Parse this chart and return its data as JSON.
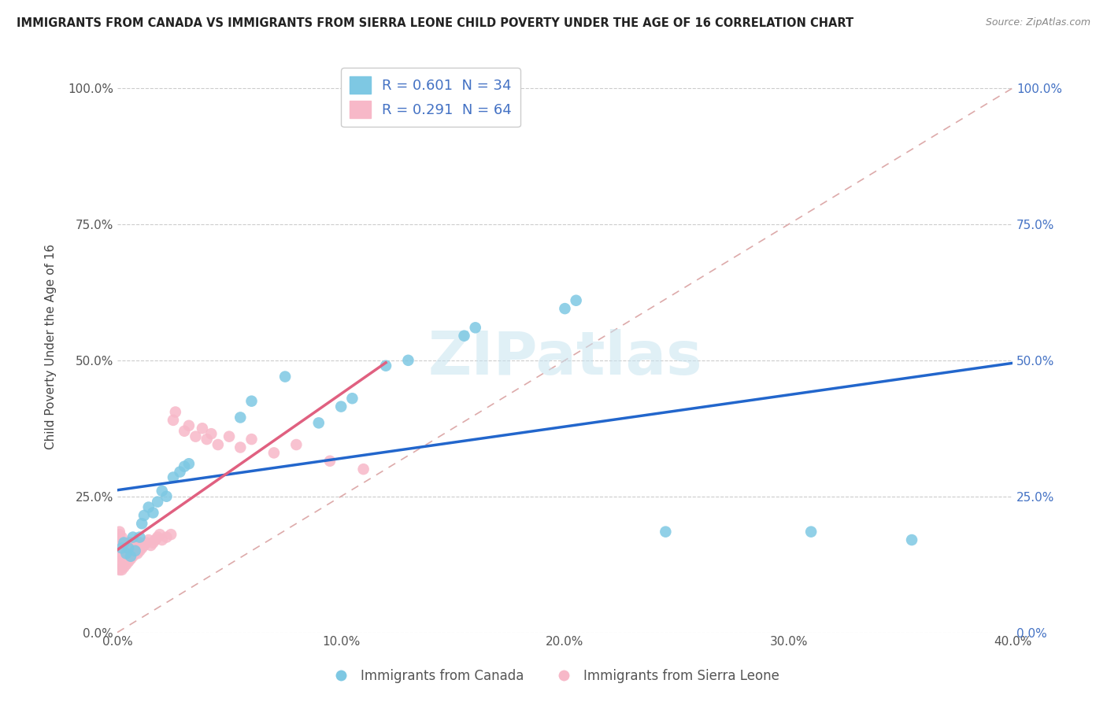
{
  "title": "IMMIGRANTS FROM CANADA VS IMMIGRANTS FROM SIERRA LEONE CHILD POVERTY UNDER THE AGE OF 16 CORRELATION CHART",
  "source": "Source: ZipAtlas.com",
  "ylabel": "Child Poverty Under the Age of 16",
  "watermark": "ZIPatlas",
  "canada_R": 0.601,
  "canada_N": 34,
  "sierraleone_R": 0.291,
  "sierraleone_N": 64,
  "canada_color": "#7ec8e3",
  "sierraleone_color": "#f7b8c8",
  "canada_line_color": "#2266cc",
  "sierraleone_line_color": "#e06080",
  "background_color": "#ffffff",
  "grid_color": "#cccccc",
  "xlim": [
    0.0,
    0.4
  ],
  "ylim": [
    0.0,
    1.05
  ],
  "xticks": [
    0.0,
    0.1,
    0.2,
    0.3,
    0.4
  ],
  "yticks": [
    0.0,
    0.25,
    0.5,
    0.75,
    1.0
  ],
  "canada_x": [
    0.002,
    0.003,
    0.004,
    0.005,
    0.006,
    0.007,
    0.008,
    0.01,
    0.011,
    0.012,
    0.014,
    0.016,
    0.018,
    0.02,
    0.022,
    0.025,
    0.028,
    0.03,
    0.032,
    0.055,
    0.06,
    0.075,
    0.09,
    0.1,
    0.105,
    0.12,
    0.13,
    0.155,
    0.16,
    0.2,
    0.205,
    0.245,
    0.31,
    0.355
  ],
  "canada_y": [
    0.155,
    0.165,
    0.145,
    0.155,
    0.14,
    0.175,
    0.15,
    0.175,
    0.2,
    0.215,
    0.23,
    0.22,
    0.24,
    0.26,
    0.25,
    0.285,
    0.295,
    0.305,
    0.31,
    0.395,
    0.425,
    0.47,
    0.385,
    0.415,
    0.43,
    0.49,
    0.5,
    0.545,
    0.56,
    0.595,
    0.61,
    0.185,
    0.185,
    0.17
  ],
  "sierraleone_x": [
    0.001,
    0.001,
    0.001,
    0.001,
    0.001,
    0.001,
    0.001,
    0.001,
    0.002,
    0.002,
    0.002,
    0.002,
    0.002,
    0.002,
    0.003,
    0.003,
    0.003,
    0.003,
    0.004,
    0.004,
    0.004,
    0.005,
    0.005,
    0.005,
    0.005,
    0.006,
    0.006,
    0.006,
    0.007,
    0.007,
    0.008,
    0.008,
    0.009,
    0.009,
    0.01,
    0.01,
    0.011,
    0.012,
    0.013,
    0.014,
    0.015,
    0.016,
    0.017,
    0.018,
    0.019,
    0.02,
    0.022,
    0.024,
    0.025,
    0.026,
    0.03,
    0.032,
    0.035,
    0.038,
    0.04,
    0.042,
    0.045,
    0.05,
    0.055,
    0.06,
    0.07,
    0.08,
    0.095,
    0.11
  ],
  "sierraleone_y": [
    0.115,
    0.13,
    0.145,
    0.155,
    0.165,
    0.17,
    0.18,
    0.185,
    0.115,
    0.125,
    0.14,
    0.155,
    0.165,
    0.175,
    0.12,
    0.135,
    0.15,
    0.16,
    0.125,
    0.14,
    0.16,
    0.13,
    0.145,
    0.155,
    0.165,
    0.135,
    0.15,
    0.165,
    0.14,
    0.16,
    0.145,
    0.165,
    0.145,
    0.165,
    0.15,
    0.165,
    0.155,
    0.16,
    0.165,
    0.17,
    0.16,
    0.165,
    0.17,
    0.175,
    0.18,
    0.17,
    0.175,
    0.18,
    0.39,
    0.405,
    0.37,
    0.38,
    0.36,
    0.375,
    0.355,
    0.365,
    0.345,
    0.36,
    0.34,
    0.355,
    0.33,
    0.345,
    0.315,
    0.3
  ]
}
